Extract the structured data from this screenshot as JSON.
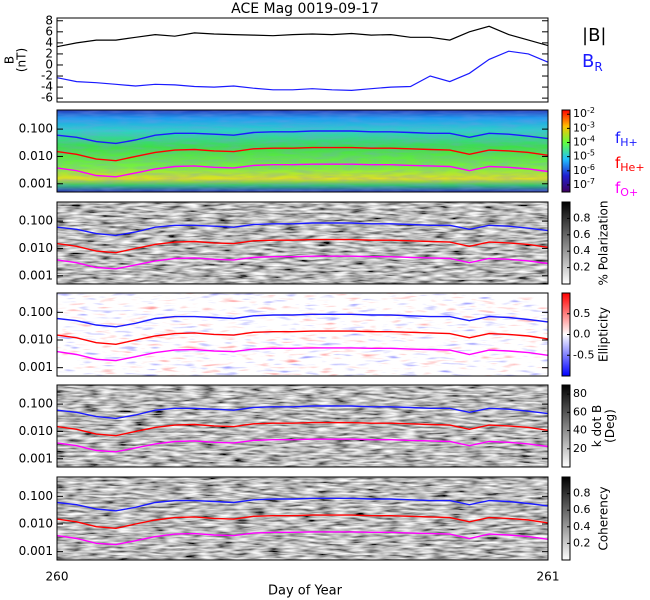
{
  "title": "ACE Mag 0019-09-17",
  "xaxis": {
    "label": "Day of Year",
    "lim": [
      260,
      261
    ],
    "ticks": [
      260,
      261
    ]
  },
  "chart_data": [
    {
      "type": "line",
      "ylabel": [
        "B",
        "(nT)"
      ],
      "ylim": [
        -6.7,
        8.5
      ],
      "yticks": [
        -6,
        -4,
        -2,
        0,
        2,
        4,
        6,
        8
      ],
      "x": [
        260,
        260.04,
        260.08,
        260.12,
        260.16,
        260.2,
        260.24,
        260.28,
        260.32,
        260.36,
        260.4,
        260.44,
        260.48,
        260.52,
        260.56,
        260.6,
        260.64,
        260.68,
        260.72,
        260.76,
        260.8,
        260.84,
        260.88,
        260.92,
        260.96,
        261
      ],
      "series": [
        {
          "name": "|B|",
          "color": "#000000",
          "values": [
            3.3,
            4,
            4.5,
            4.5,
            5,
            5.5,
            5.2,
            5.8,
            5.6,
            5.5,
            5.4,
            5.3,
            5.5,
            5.6,
            5.5,
            5.7,
            5.4,
            5.5,
            5,
            5,
            4.5,
            6,
            7,
            5.5,
            4.5,
            3.5
          ]
        },
        {
          "name": "B",
          "subscript": "R",
          "color": "#1a1aff",
          "values": [
            -2.3,
            -3,
            -3.2,
            -3.5,
            -3.8,
            -3.5,
            -3.6,
            -3.9,
            -4,
            -3.8,
            -4.2,
            -4.5,
            -4.5,
            -4.3,
            -4.5,
            -4.6,
            -4.3,
            -4,
            -3.9,
            -2,
            -3,
            -1.5,
            1,
            2.5,
            2,
            0.5
          ]
        }
      ]
    },
    {
      "type": "spectrogram",
      "colormap": "rainbow",
      "ylog": true,
      "ylim": [
        0.0005,
        0.5
      ],
      "yticks": [
        {
          "value": 0.1,
          "label": "0.100"
        },
        {
          "value": 0.01,
          "label": "0.010"
        },
        0.001
      ],
      "colorbar": {
        "lim": [
          -7.5,
          -1.7
        ],
        "ticks": [
          {
            "value": -2,
            "label": "10",
            "sup": "-2"
          },
          {
            "value": -3,
            "label": "10",
            "sup": "-3"
          },
          {
            "value": -4,
            "label": "10",
            "sup": "-4"
          },
          {
            "value": -5,
            "label": "10",
            "sup": "-5"
          },
          {
            "value": -6,
            "label": "10",
            "sup": "-6"
          },
          {
            "value": -7,
            "label": "10",
            "sup": "-7"
          }
        ]
      },
      "x": [
        260,
        260.04,
        260.08,
        260.12,
        260.16,
        260.2,
        260.24,
        260.28,
        260.32,
        260.36,
        260.4,
        260.44,
        260.48,
        260.52,
        260.56,
        260.6,
        260.64,
        260.68,
        260.72,
        260.76,
        260.8,
        260.84,
        260.88,
        260.92,
        260.96,
        261
      ],
      "series": [
        {
          "name": "f",
          "subscript": "H+",
          "color": "#1a1aff",
          "values": [
            0.06,
            0.05,
            0.035,
            0.03,
            0.04,
            0.06,
            0.07,
            0.07,
            0.065,
            0.06,
            0.075,
            0.08,
            0.08,
            0.085,
            0.085,
            0.085,
            0.08,
            0.08,
            0.075,
            0.07,
            0.07,
            0.05,
            0.07,
            0.065,
            0.055,
            0.045
          ]
        },
        {
          "name": "f",
          "subscript": "He+",
          "color": "#ff0000",
          "values": [
            0.015,
            0.012,
            0.008,
            0.007,
            0.01,
            0.014,
            0.017,
            0.018,
            0.016,
            0.015,
            0.019,
            0.02,
            0.02,
            0.021,
            0.021,
            0.021,
            0.02,
            0.02,
            0.019,
            0.018,
            0.017,
            0.012,
            0.017,
            0.016,
            0.014,
            0.011
          ]
        },
        {
          "name": "f",
          "subscript": "O+",
          "color": "#ff00ff",
          "values": [
            0.0038,
            0.003,
            0.002,
            0.0018,
            0.0025,
            0.0035,
            0.0043,
            0.0045,
            0.004,
            0.0038,
            0.0047,
            0.005,
            0.005,
            0.0052,
            0.0052,
            0.0052,
            0.005,
            0.005,
            0.0047,
            0.0045,
            0.0043,
            0.003,
            0.0043,
            0.004,
            0.0035,
            0.0028
          ]
        }
      ]
    },
    {
      "type": "spectrogram",
      "colormap": "gray",
      "ylog": true,
      "ylim": [
        0.0005,
        0.5
      ],
      "yticks": [
        {
          "value": 0.1,
          "label": "0.100"
        },
        {
          "value": 0.01,
          "label": "0.010"
        },
        0.001
      ],
      "colorbar": {
        "label": [
          "% Polarization"
        ],
        "lim": [
          0,
          1
        ],
        "ticks": [
          0.2,
          0.4,
          0.6,
          0.8
        ]
      }
    },
    {
      "type": "spectrogram",
      "colormap": "redblue",
      "ylog": true,
      "ylim": [
        0.0005,
        0.5
      ],
      "yticks": [
        {
          "value": 0.1,
          "label": "0.100"
        },
        {
          "value": 0.01,
          "label": "0.010"
        },
        0.001
      ],
      "colorbar": {
        "label": [
          "Ellipticity"
        ],
        "lim": [
          -1,
          1
        ],
        "ticks": [
          -0.5,
          {
            "value": 0,
            "label": "0.0"
          },
          0.5
        ]
      }
    },
    {
      "type": "spectrogram",
      "colormap": "gray",
      "ylog": true,
      "ylim": [
        0.0005,
        0.5
      ],
      "yticks": [
        {
          "value": 0.1,
          "label": "0.100"
        },
        {
          "value": 0.01,
          "label": "0.010"
        },
        0.001
      ],
      "colorbar": {
        "label": [
          "k dot B",
          "(Deg)"
        ],
        "lim": [
          0,
          90
        ],
        "ticks": [
          20,
          40,
          60,
          80
        ]
      }
    },
    {
      "type": "spectrogram",
      "colormap": "gray",
      "ylog": true,
      "ylim": [
        0.0005,
        0.5
      ],
      "yticks": [
        {
          "value": 0.1,
          "label": "0.100"
        },
        {
          "value": 0.01,
          "label": "0.010"
        },
        0.001
      ],
      "colorbar": {
        "label": [
          "Coherency"
        ],
        "lim": [
          0,
          1
        ],
        "ticks": [
          0.2,
          0.4,
          0.6,
          0.8
        ]
      }
    }
  ]
}
